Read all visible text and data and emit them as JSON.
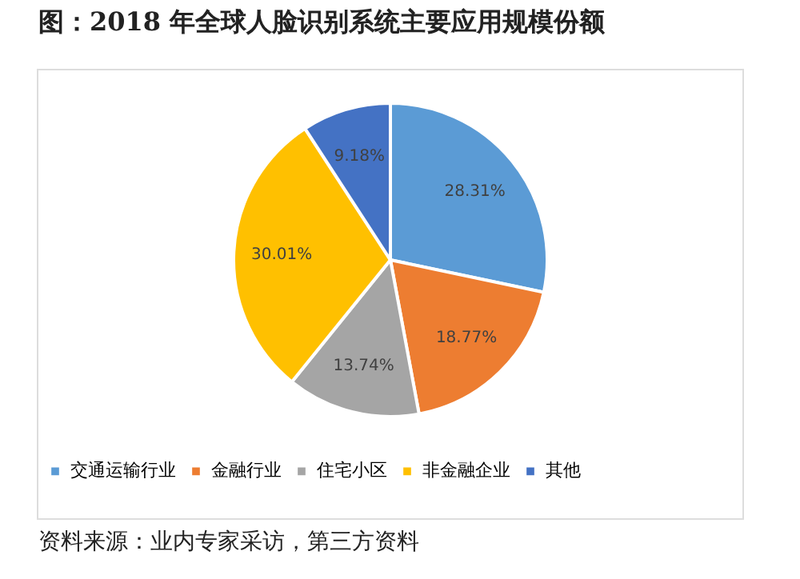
{
  "chart_data": {
    "type": "pie",
    "title": "图：2018 年全球人脸识别系统主要应用规模份额",
    "categories": [
      "交通运输行业",
      "金融行业",
      "住宅小区",
      "非金融企业",
      "其他"
    ],
    "values": [
      28.31,
      18.77,
      13.74,
      30.01,
      9.18
    ],
    "value_labels": [
      "28.31%",
      "18.77%",
      "13.74%",
      "30.01%",
      "9.18%"
    ],
    "colors": [
      "#5b9bd5",
      "#ed7d31",
      "#a5a5a5",
      "#ffc000",
      "#4472c4"
    ],
    "legend": "bottom",
    "annotations": [
      "资料来源：业内专家采访，第三方资料"
    ]
  }
}
